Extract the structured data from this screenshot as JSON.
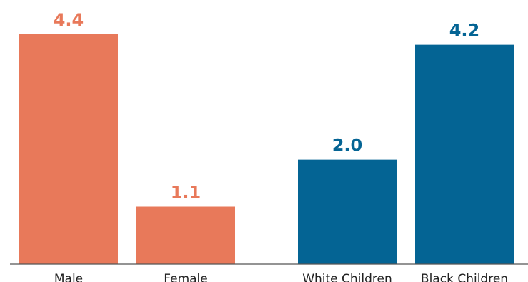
{
  "chart_data": {
    "type": "bar",
    "categories": [
      "Male",
      "Female",
      "White Children",
      "Black Children"
    ],
    "values": [
      4.4,
      1.1,
      2.0,
      4.2
    ],
    "value_labels": [
      "4.4",
      "1.1",
      "2.0",
      "4.2"
    ],
    "bar_colors": [
      "#E8795A",
      "#E8795A",
      "#046494",
      "#046494"
    ],
    "title": "",
    "xlabel": "",
    "ylabel": "",
    "ylim": [
      0,
      4.4
    ],
    "grid": false,
    "legend": "none"
  },
  "colors": {
    "orange": "#E8795A",
    "blue": "#046494",
    "baseline": "#555555"
  }
}
